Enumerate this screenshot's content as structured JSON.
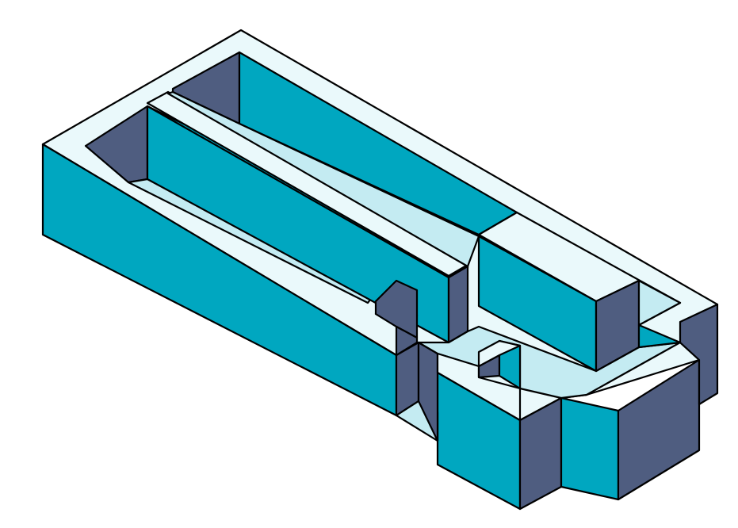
{
  "figure": {
    "kind": "isometric-block-model",
    "colors": {
      "top_face": "#eaf9fb",
      "floor_face": "#c4ebf2",
      "front_face": "#00a7c0",
      "side_face": "#4f5d80",
      "outline": "#000000",
      "background": "#ffffff"
    }
  }
}
